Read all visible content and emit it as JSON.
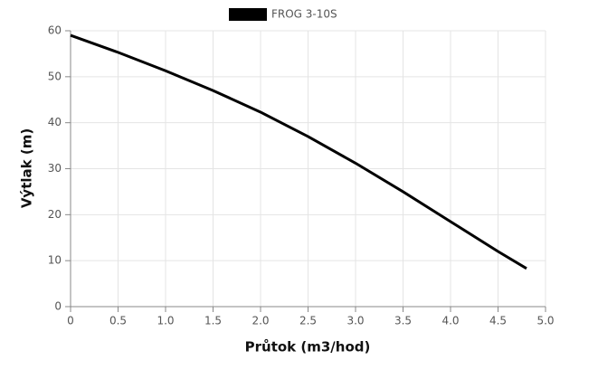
{
  "chart_data": {
    "type": "line",
    "x_label": "Průtok (m3/hod)",
    "y_label": "Výtlak (m)",
    "x": [
      0,
      0.5,
      1,
      1.5,
      2,
      2.5,
      3,
      3.5,
      4,
      4.5,
      4.8
    ],
    "series": [
      {
        "name": "FROG 3-10S",
        "color": "#000000",
        "values": [
          59,
          55.3,
          51.3,
          47,
          42.3,
          37,
          31.2,
          25,
          18.5,
          12,
          8.3
        ]
      }
    ],
    "xlim": [
      0,
      5
    ],
    "ylim": [
      0,
      60
    ],
    "xticks": [
      0,
      0.5,
      {
        "value": 1,
        "label": "1.0"
      },
      1.5,
      {
        "value": 2,
        "label": "2.0"
      },
      2.5,
      {
        "value": 3,
        "label": "3.0"
      },
      3.5,
      {
        "value": 4,
        "label": "4.0"
      },
      4.5,
      {
        "value": 5,
        "label": "5.0"
      }
    ],
    "yticks": [
      0,
      10,
      20,
      30,
      40,
      50,
      60
    ],
    "grid": true,
    "legend": "top"
  }
}
